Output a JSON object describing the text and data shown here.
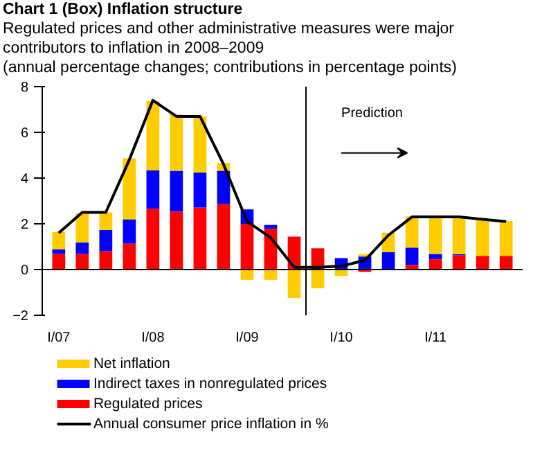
{
  "chart_data": {
    "type": "bar",
    "stacked": true,
    "title": "Chart 1 (Box)  Inflation structure",
    "subtitle": "Regulated prices and other administrative measures were major contributors to inflation in 2008–2009\n(annual percentage changes; contributions in percentage points)",
    "categories": [
      "I/07",
      null,
      null,
      null,
      "I/08",
      null,
      null,
      null,
      "I/09",
      null,
      null,
      null,
      "I/10",
      null,
      null,
      null,
      "I/11",
      null,
      null,
      null
    ],
    "series": [
      {
        "name": "Regulated prices",
        "color": "#ff0000",
        "values": [
          0.68,
          0.68,
          0.8,
          1.13,
          2.66,
          2.54,
          2.71,
          2.88,
          2.0,
          1.78,
          1.44,
          0.93,
          0,
          -0.1,
          0,
          0.2,
          0.45,
          0.62,
          0.6,
          0.6
        ]
      },
      {
        "name": "Indirect taxes in nonregulated prices",
        "color": "#0000ff",
        "values": [
          0.2,
          0.5,
          0.93,
          1.07,
          1.67,
          1.78,
          1.53,
          1.44,
          0.63,
          0.17,
          0,
          0,
          0.5,
          0.57,
          0.76,
          0.76,
          0.23,
          0.05,
          0,
          0
        ]
      },
      {
        "name": "Net inflation",
        "color": "#ffcc00",
        "values": [
          0.76,
          1.28,
          0.77,
          2.66,
          3.04,
          2.46,
          2.46,
          0.34,
          -0.45,
          -0.45,
          -1.24,
          -0.82,
          -0.28,
          0.1,
          0.85,
          1.36,
          1.58,
          1.6,
          1.58,
          1.52
        ]
      },
      {
        "name": "Annual consumer price inflation in %",
        "type": "line",
        "color": "#000000",
        "values": [
          1.6,
          2.5,
          2.5,
          4.8,
          7.4,
          6.7,
          6.7,
          4.6,
          2.1,
          1.4,
          0.1,
          0.1,
          0.15,
          0.4,
          1.5,
          2.3,
          2.3,
          2.3,
          2.2,
          2.1
        ]
      }
    ],
    "ylim": [
      -2,
      8
    ],
    "yticks": [
      -2,
      0,
      2,
      4,
      6,
      8
    ],
    "legend": "bottom",
    "annotations": [
      "Prediction"
    ]
  }
}
